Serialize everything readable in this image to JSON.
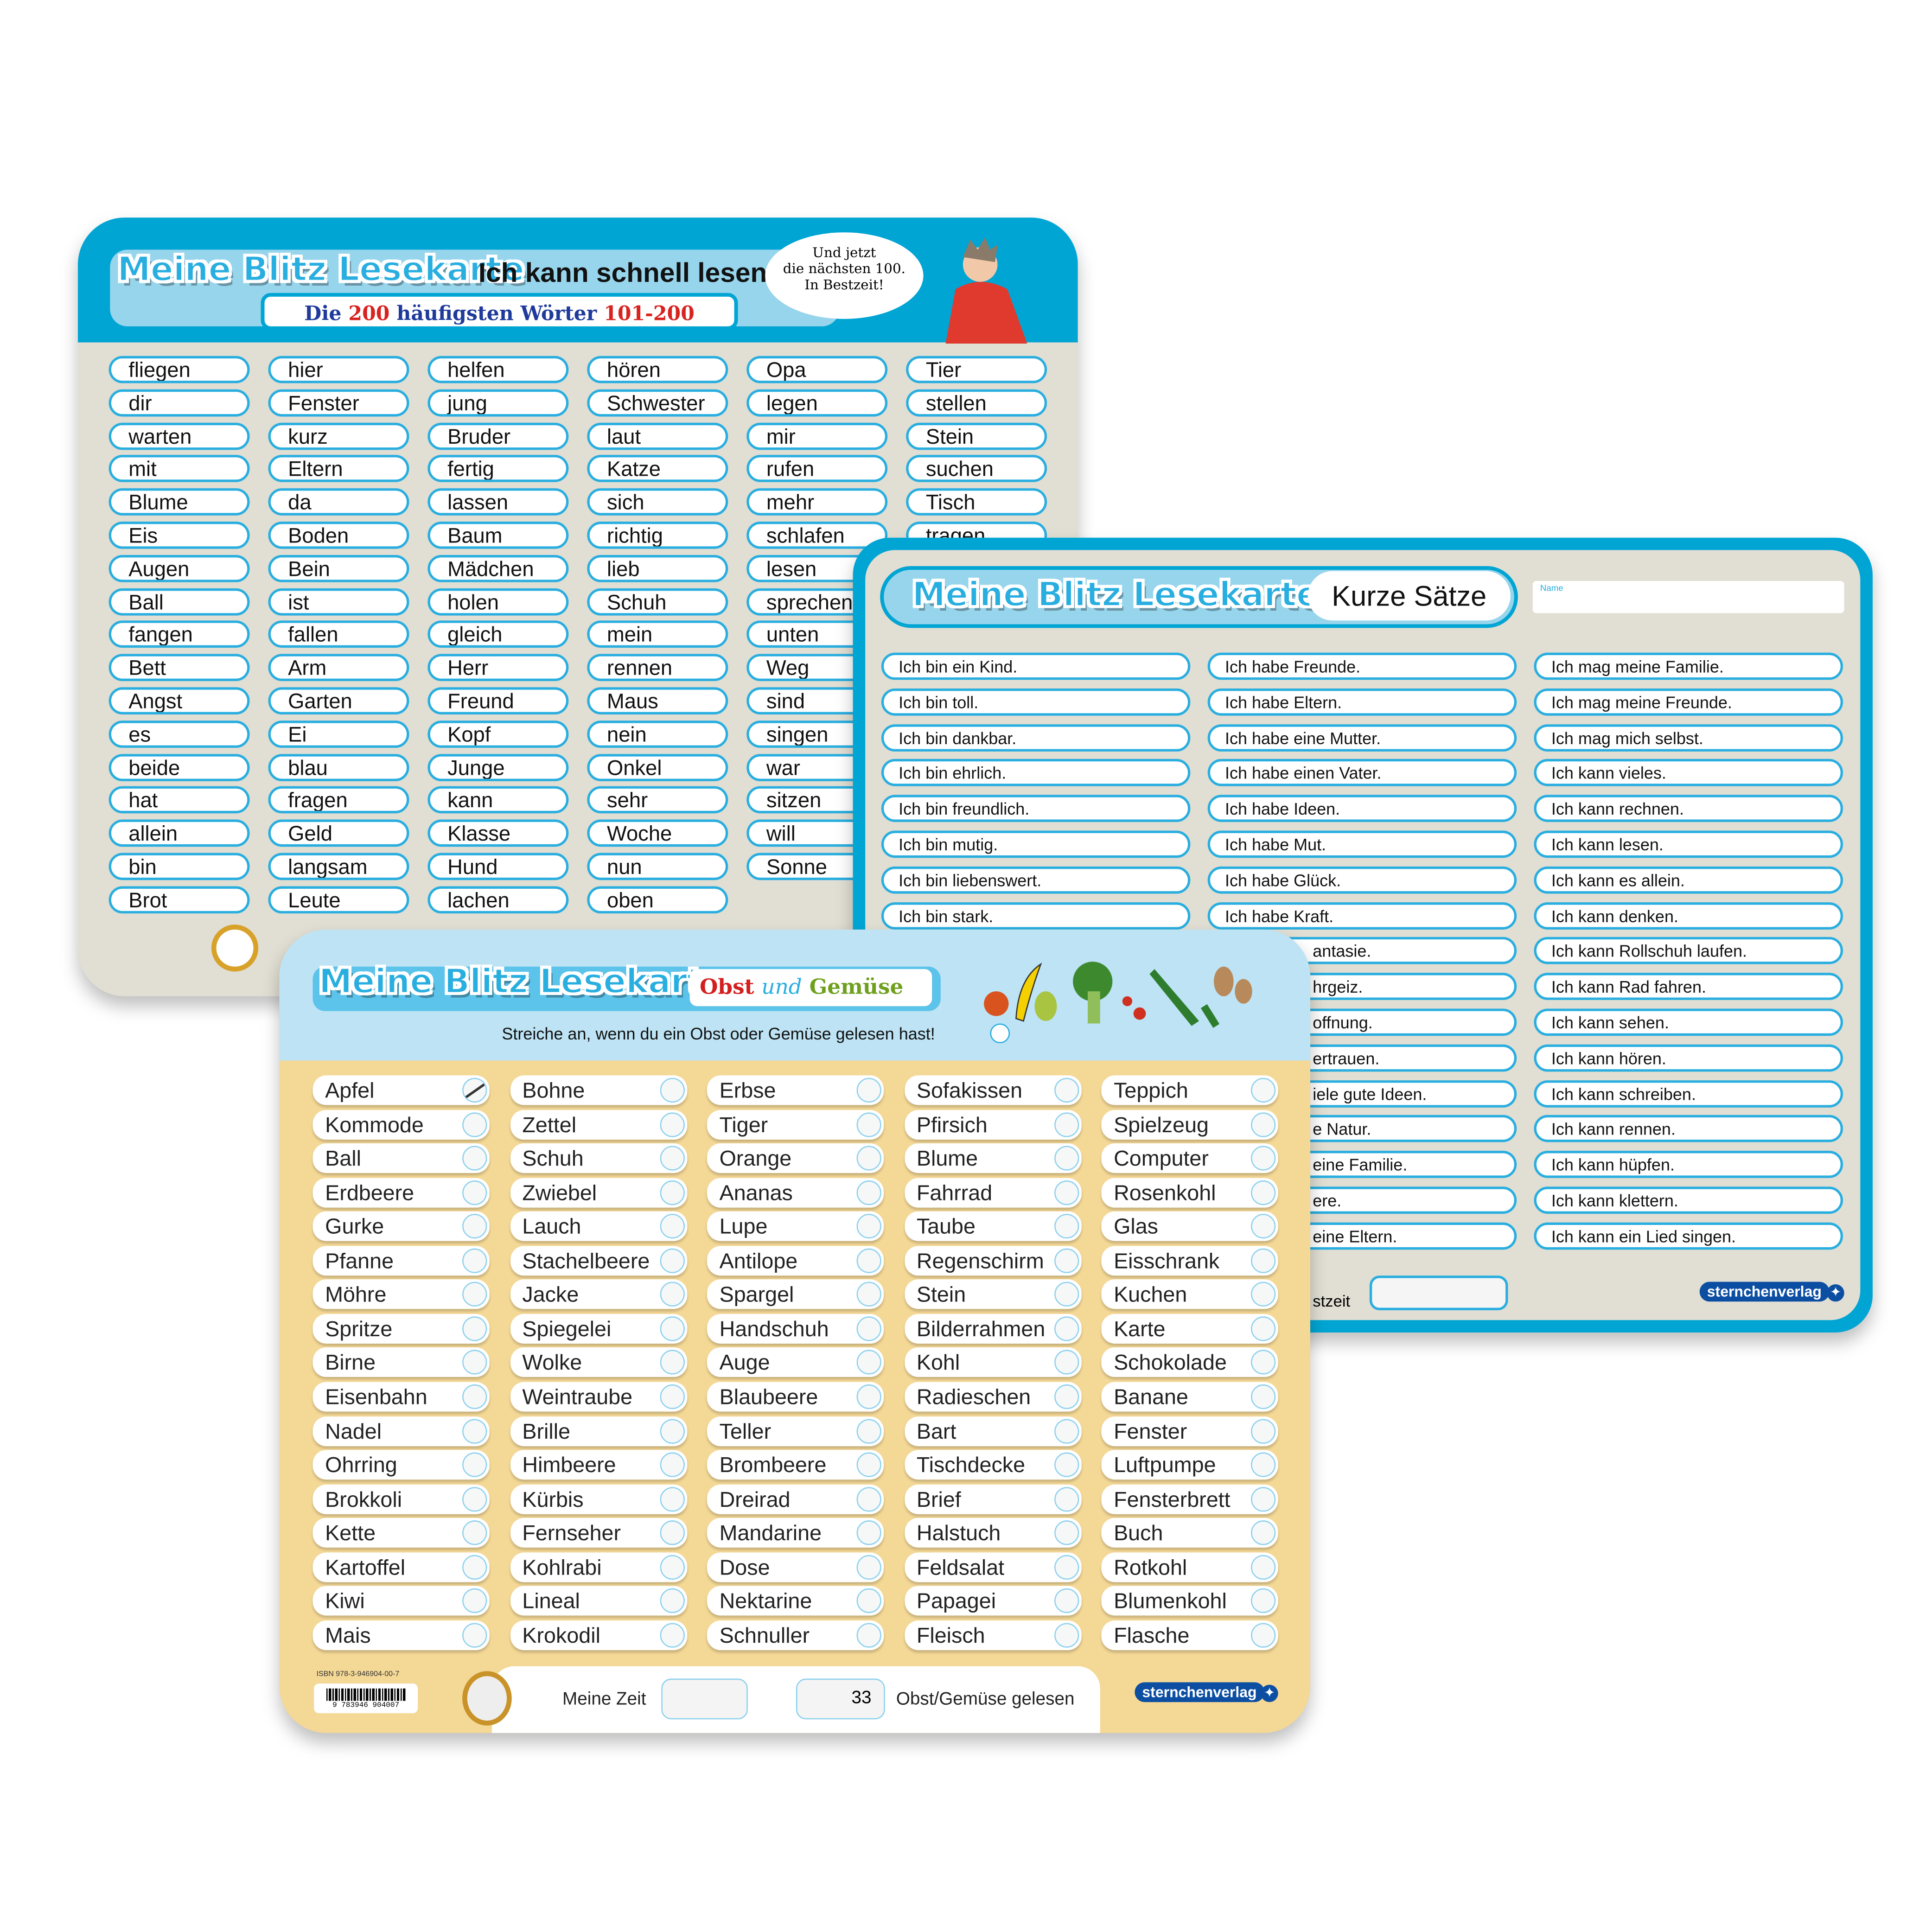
{
  "brand": {
    "logo_text": "Meine Blitz Lesekarte",
    "publisher": "sternchenverlag"
  },
  "card_words": {
    "title": "Ich kann schnell lesen",
    "subtitle_prefix": "Die",
    "subtitle_number": "200",
    "subtitle_middle": "häufigsten Wörter",
    "subtitle_range": "101-200",
    "bubble": [
      "Und jetzt",
      "die nächsten 100.",
      "In Bestzeit!"
    ],
    "columns": [
      [
        "fliegen",
        "dir",
        "warten",
        "mit",
        "Blume",
        "Eis",
        "Augen",
        "Ball",
        "fangen",
        "Bett",
        "Angst",
        "es",
        "beide",
        "hat",
        "allein",
        "bin",
        "Brot"
      ],
      [
        "hier",
        "Fenster",
        "kurz",
        "Eltern",
        "da",
        "Boden",
        "Bein",
        "ist",
        "fallen",
        "Arm",
        "Garten",
        "Ei",
        "blau",
        "fragen",
        "Geld",
        "langsam",
        "Leute"
      ],
      [
        "helfen",
        "jung",
        "Bruder",
        "fertig",
        "lassen",
        "Baum",
        "Mädchen",
        "holen",
        "gleich",
        "Herr",
        "Freund",
        "Kopf",
        "Junge",
        "kann",
        "Klasse",
        "Hund",
        "lachen"
      ],
      [
        "hören",
        "Schwester",
        "laut",
        "Katze",
        "sich",
        "richtig",
        "lieb",
        "Schuh",
        "mein",
        "rennen",
        "Maus",
        "nein",
        "Onkel",
        "sehr",
        "Woche",
        "nun",
        "oben"
      ],
      [
        "Opa",
        "legen",
        "mir",
        "rufen",
        "mehr",
        "schlafen",
        "lesen",
        "sprechen",
        "unten",
        "Weg",
        "sind",
        "singen",
        "war",
        "sitzen",
        "will",
        "Sonne"
      ],
      [
        "Tier",
        "stellen",
        "Stein",
        "suchen",
        "Tisch",
        "tragen"
      ]
    ]
  },
  "card_sentences": {
    "title": "Kurze Sätze",
    "name_label": "Name",
    "best_label": "stzeit",
    "columns": [
      [
        "Ich bin ein Kind.",
        "Ich bin toll.",
        "Ich bin dankbar.",
        "Ich bin ehrlich.",
        "Ich bin freundlich.",
        "Ich bin mutig.",
        "Ich bin liebenswert.",
        "Ich bin stark."
      ],
      [
        "Ich habe Freunde.",
        "Ich habe Eltern.",
        "Ich habe eine Mutter.",
        "Ich habe einen Vater.",
        "Ich habe Ideen.",
        "Ich habe Mut.",
        "Ich habe Glück.",
        "Ich habe Kraft.",
        "antasie.",
        "hrgeiz.",
        "offnung.",
        "ertrauen.",
        "iele gute Ideen.",
        "e Natur.",
        "eine Familie.",
        "ere.",
        "eine Eltern."
      ],
      [
        "Ich mag meine Familie.",
        "Ich mag meine Freunde.",
        "Ich mag mich selbst.",
        "Ich kann vieles.",
        "Ich kann rechnen.",
        "Ich kann lesen.",
        "Ich kann es allein.",
        "Ich kann denken.",
        "Ich kann Rollschuh laufen.",
        "Ich kann Rad fahren.",
        "Ich kann sehen.",
        "Ich kann hören.",
        "Ich kann schreiben.",
        "Ich kann rennen.",
        "Ich kann hüpfen.",
        "Ich kann klettern.",
        "Ich kann ein Lied singen."
      ]
    ]
  },
  "card_fruit": {
    "title_obst": "Obst",
    "title_und": "und",
    "title_gemuese": "Gemüse",
    "instruction": "Streiche an, wenn du ein Obst oder Gemüse gelesen hast!",
    "isbn": "ISBN 978-3-946904-00-7",
    "barcode_digits": "9 783946 904007",
    "my_time_label": "Meine Zeit",
    "total": "33",
    "read_label": "Obst/Gemüse gelesen",
    "checked": [
      "Apfel"
    ],
    "columns": [
      [
        "Apfel",
        "Kommode",
        "Ball",
        "Erdbeere",
        "Gurke",
        "Pfanne",
        "Möhre",
        "Spritze",
        "Birne",
        "Eisenbahn",
        "Nadel",
        "Ohrring",
        "Brokkoli",
        "Kette",
        "Kartoffel",
        "Kiwi",
        "Mais"
      ],
      [
        "Bohne",
        "Zettel",
        "Schuh",
        "Zwiebel",
        "Lauch",
        "Stachelbeere",
        "Jacke",
        "Spiegelei",
        "Wolke",
        "Weintraube",
        "Brille",
        "Himbeere",
        "Kürbis",
        "Fernseher",
        "Kohlrabi",
        "Lineal",
        "Krokodil"
      ],
      [
        "Erbse",
        "Tiger",
        "Orange",
        "Ananas",
        "Lupe",
        "Antilope",
        "Spargel",
        "Handschuh",
        "Auge",
        "Blaubeere",
        "Teller",
        "Brombeere",
        "Dreirad",
        "Mandarine",
        "Dose",
        "Nektarine",
        "Schnuller"
      ],
      [
        "Sofakissen",
        "Pfirsich",
        "Blume",
        "Fahrrad",
        "Taube",
        "Regenschirm",
        "Stein",
        "Bilderrahmen",
        "Kohl",
        "Radieschen",
        "Bart",
        "Tischdecke",
        "Brief",
        "Halstuch",
        "Feldsalat",
        "Papagei",
        "Fleisch"
      ],
      [
        "Teppich",
        "Spielzeug",
        "Computer",
        "Rosenkohl",
        "Glas",
        "Eisschrank",
        "Kuchen",
        "Karte",
        "Schokolade",
        "Banane",
        "Fenster",
        "Luftpumpe",
        "Fensterbrett",
        "Buch",
        "Rotkohl",
        "Blumenkohl",
        "Flasche"
      ]
    ]
  },
  "colors": {
    "brand_blue": "#00a5d4",
    "card_grey": "#e1ded3",
    "card_yellow": "#f4d896",
    "header_light_blue": "#bde3f4",
    "publisher_blue": "#0c4ea2"
  }
}
